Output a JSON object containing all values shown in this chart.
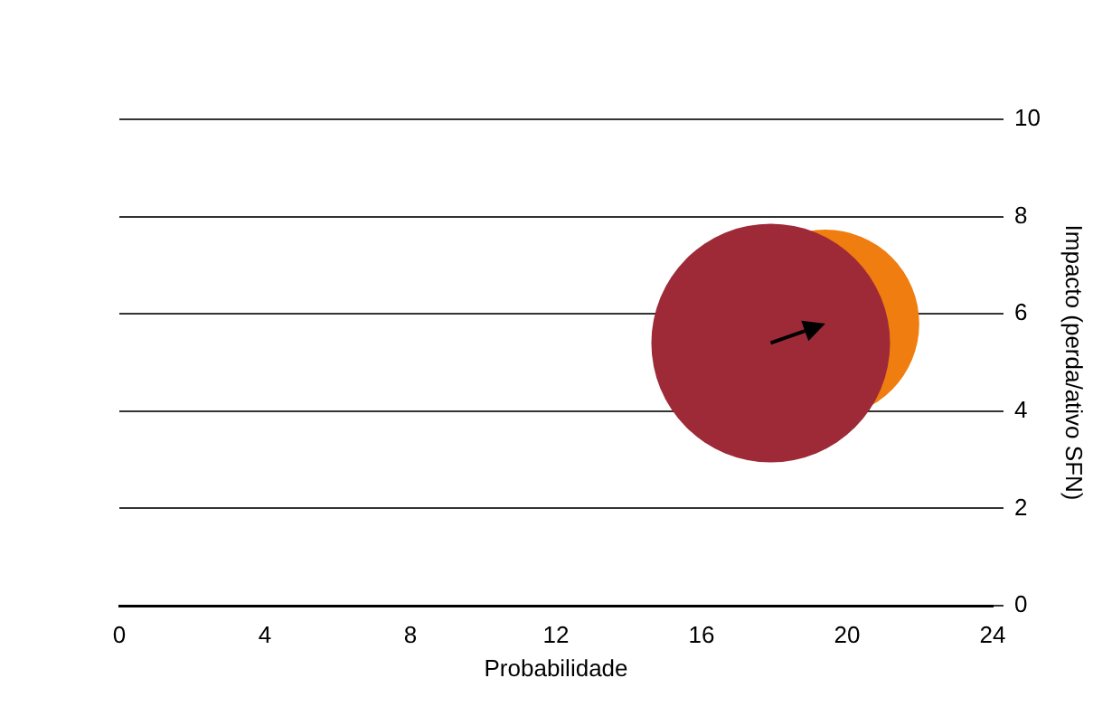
{
  "chart_data": {
    "type": "bubble",
    "xlabel": "Probabilidade",
    "ylabel": "Impacto (perda/ativo SFN)",
    "xlim": [
      0,
      24
    ],
    "xticks": [
      0,
      4,
      8,
      12,
      16,
      20,
      24
    ],
    "ylim": [
      0,
      10
    ],
    "yticks": [
      0,
      2,
      4,
      6,
      8,
      10
    ],
    "grid": "y",
    "legend": false,
    "series": [
      {
        "color": "#ef7d0f",
        "x": [
          19.4
        ],
        "values": [
          5.8
        ],
        "sizes": [
          0.62
        ]
      },
      {
        "color": "#9e2a38",
        "x": [
          17.9
        ],
        "values": [
          5.4
        ],
        "sizes": [
          1
        ]
      }
    ]
  }
}
